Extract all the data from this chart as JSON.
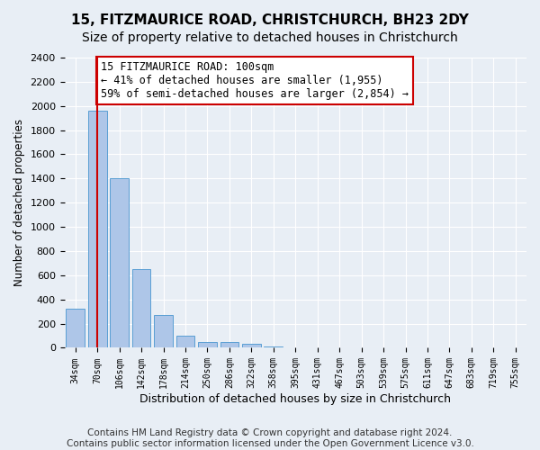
{
  "title": "15, FITZMAURICE ROAD, CHRISTCHURCH, BH23 2DY",
  "subtitle": "Size of property relative to detached houses in Christchurch",
  "xlabel": "Distribution of detached houses by size in Christchurch",
  "ylabel": "Number of detached properties",
  "bin_labels": [
    "34sqm",
    "70sqm",
    "106sqm",
    "142sqm",
    "178sqm",
    "214sqm",
    "250sqm",
    "286sqm",
    "322sqm",
    "358sqm",
    "395sqm",
    "431sqm",
    "467sqm",
    "503sqm",
    "539sqm",
    "575sqm",
    "611sqm",
    "647sqm",
    "683sqm",
    "719sqm",
    "755sqm"
  ],
  "bar_heights": [
    320,
    1960,
    1400,
    650,
    275,
    100,
    50,
    50,
    30,
    10,
    0,
    0,
    0,
    0,
    0,
    0,
    0,
    0,
    0,
    0,
    0
  ],
  "bar_color": "#aec6e8",
  "bar_edge_color": "#5a9fd4",
  "property_sqm": 100,
  "property_bin_index": 1,
  "vline_x": 1,
  "annotation_line1": "15 FITZMAURICE ROAD: 100sqm",
  "annotation_line2": "← 41% of detached houses are smaller (1,955)",
  "annotation_line3": "59% of semi-detached houses are larger (2,854) →",
  "annotation_box_color": "#ffffff",
  "annotation_box_edgecolor": "#cc0000",
  "vline_color": "#cc0000",
  "ylim": [
    0,
    2400
  ],
  "yticks": [
    0,
    200,
    400,
    600,
    800,
    1000,
    1200,
    1400,
    1600,
    1800,
    2000,
    2200,
    2400
  ],
  "footer_line1": "Contains HM Land Registry data © Crown copyright and database right 2024.",
  "footer_line2": "Contains public sector information licensed under the Open Government Licence v3.0.",
  "background_color": "#e8eef5",
  "plot_background_color": "#e8eef5",
  "grid_color": "#ffffff",
  "title_fontsize": 11,
  "subtitle_fontsize": 10,
  "annotation_fontsize": 8.5,
  "footer_fontsize": 7.5,
  "ylabel_fontsize": 8.5,
  "xlabel_fontsize": 9
}
